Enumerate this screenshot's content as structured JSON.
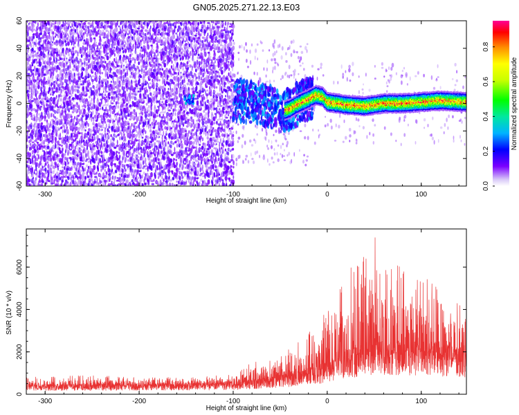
{
  "chart_data": [
    {
      "type": "heatmap",
      "title": "GN05.2025.271.22.13.E03",
      "xlabel": "Height of straight line (km)",
      "ylabel": "Frequency (Hz)",
      "xlim": [
        -320,
        148
      ],
      "ylim": [
        -60,
        60
      ],
      "xticks": [
        -300,
        -200,
        -100,
        0,
        100
      ],
      "yticks": [
        -60,
        -40,
        -20,
        0,
        20,
        40,
        60
      ],
      "grid": false,
      "colorbar": {
        "label": "Normalized spectral amplitude",
        "range": [
          0,
          0.95
        ],
        "ticks": [
          0.0,
          0.2,
          0.4,
          0.6,
          0.8
        ]
      },
      "ridge": {
        "x": [
          -150,
          -100,
          -80,
          -60,
          -50,
          -40,
          -30,
          -20,
          -12,
          -5,
          0,
          20,
          40,
          60,
          80,
          100,
          120,
          148
        ],
        "frequency": [
          3,
          3,
          1,
          -3,
          -6,
          -4,
          0,
          3,
          6,
          5,
          1,
          -1,
          -2,
          0,
          0,
          1,
          2,
          1
        ]
      },
      "noise_region": {
        "x": [
          -320,
          -100
        ],
        "frequency": [
          -60,
          60
        ]
      }
    },
    {
      "type": "line",
      "xlabel": "Height of straight line (km)",
      "ylabel": "SNR (10 * v/v)",
      "xlim": [
        -320,
        148
      ],
      "ylim": [
        0,
        7800
      ],
      "xticks": [
        -300,
        -200,
        -100,
        0,
        100
      ],
      "yticks": [
        0,
        2000,
        4000,
        6000
      ],
      "grid": false,
      "color": "#e83232",
      "envelope": {
        "x": [
          -320,
          -250,
          -200,
          -150,
          -110,
          -90,
          -80,
          -60,
          -40,
          -30,
          -20,
          -10,
          0,
          10,
          20,
          30,
          45,
          50,
          60,
          80,
          100,
          120,
          148
        ],
        "baseline": [
          350,
          350,
          350,
          380,
          400,
          450,
          500,
          600,
          700,
          800,
          900,
          1000,
          1100,
          1300,
          1500,
          1600,
          1800,
          1900,
          1800,
          1800,
          1800,
          1700,
          1600
        ],
        "peak": [
          800,
          900,
          800,
          800,
          900,
          1200,
          1700,
          1900,
          2200,
          2600,
          3200,
          3500,
          4000,
          5000,
          5800,
          6200,
          6800,
          7800,
          6500,
          6200,
          5800,
          5000,
          4200
        ]
      }
    }
  ]
}
